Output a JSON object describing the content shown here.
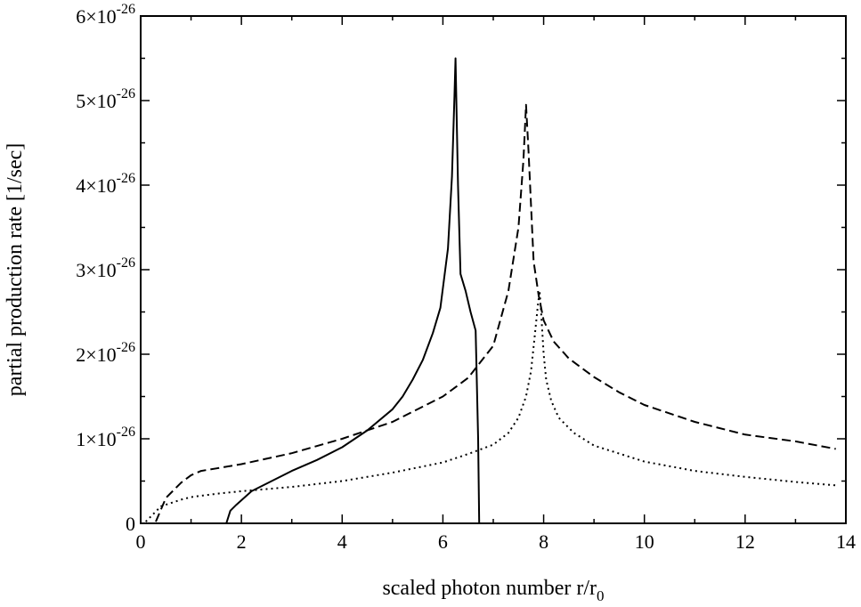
{
  "chart_data": {
    "type": "line",
    "title": "",
    "xlabel": "scaled photon number r/r",
    "xlabel_sub": "0",
    "ylabel": "partial production rate [1/sec]",
    "xlim": [
      0,
      14
    ],
    "ylim": [
      0,
      6e-26
    ],
    "grid": false,
    "legend": "none",
    "x_ticks": [
      0,
      2,
      4,
      6,
      8,
      10,
      12,
      14
    ],
    "x_tick_labels": [
      "0",
      "2",
      "4",
      "6",
      "8",
      "10",
      "12",
      "14"
    ],
    "y_ticks": [
      0,
      1e-26,
      2e-26,
      3e-26,
      4e-26,
      5e-26,
      6e-26
    ],
    "y_tick_labels": [
      {
        "mantissa": "0",
        "exponent": ""
      },
      {
        "mantissa": "1×10",
        "exponent": "-26"
      },
      {
        "mantissa": "2×10",
        "exponent": "-26"
      },
      {
        "mantissa": "3×10",
        "exponent": "-26"
      },
      {
        "mantissa": "4×10",
        "exponent": "-26"
      },
      {
        "mantissa": "5×10",
        "exponent": "-26"
      },
      {
        "mantissa": "6×10",
        "exponent": "-26"
      }
    ],
    "series": [
      {
        "style": "solid",
        "color": "#000000",
        "x": [
          1.7,
          1.78,
          1.9,
          2.2,
          2.5,
          3.0,
          3.5,
          4.0,
          4.5,
          5.0,
          5.2,
          5.4,
          5.6,
          5.8,
          5.95,
          6.1,
          6.18,
          6.23,
          6.25,
          6.3,
          6.35,
          6.45,
          6.55,
          6.65,
          6.7,
          6.72
        ],
        "y": [
          0,
          1.5e-27,
          2.2e-27,
          3.8e-27,
          4.7e-27,
          6.2e-27,
          7.5e-27,
          9e-27,
          1.1e-26,
          1.35e-26,
          1.5e-26,
          1.7e-26,
          1.93e-26,
          2.25e-26,
          2.55e-26,
          3.25e-26,
          4.1e-26,
          5.05e-26,
          5.5e-26,
          4e-26,
          2.95e-26,
          2.75e-26,
          2.5e-26,
          2.28e-26,
          1e-26,
          0
        ]
      },
      {
        "style": "dashed",
        "color": "#000000",
        "x": [
          0.3,
          0.5,
          0.8,
          1.0,
          1.2,
          1.5,
          2.0,
          3.0,
          4.0,
          5.0,
          6.0,
          6.5,
          7.0,
          7.3,
          7.5,
          7.6,
          7.65,
          7.7,
          7.8,
          7.9,
          8.0,
          8.2,
          8.5,
          9.0,
          9.5,
          10.0,
          11.0,
          12.0,
          13.0,
          13.8
        ],
        "y": [
          2e-28,
          3e-27,
          4.8e-27,
          5.7e-27,
          6.2e-27,
          6.5e-27,
          7e-27,
          8.3e-27,
          1e-26,
          1.2e-26,
          1.5e-26,
          1.72e-26,
          2.1e-26,
          2.75e-26,
          3.5e-26,
          4.3e-26,
          4.95e-26,
          4.4e-26,
          3.1e-26,
          2.7e-26,
          2.4e-26,
          2.15e-26,
          1.95e-26,
          1.73e-26,
          1.55e-26,
          1.4e-26,
          1.2e-26,
          1.05e-26,
          9.7e-27,
          8.8e-27
        ]
      },
      {
        "style": "dotted",
        "color": "#000000",
        "x": [
          0.1,
          0.4,
          0.8,
          1.0,
          1.5,
          2.0,
          3.0,
          4.0,
          5.0,
          6.0,
          6.5,
          7.0,
          7.3,
          7.5,
          7.65,
          7.75,
          7.82,
          7.88,
          7.92,
          7.95,
          8.0,
          8.05,
          8.15,
          8.3,
          8.6,
          9.0,
          10.0,
          11.0,
          12.0,
          13.0,
          13.8
        ],
        "y": [
          2e-28,
          2e-27,
          2.8e-27,
          3.1e-27,
          3.5e-27,
          3.8e-27,
          4.3e-27,
          5e-27,
          6e-27,
          7.2e-27,
          8.2e-27,
          9.3e-27,
          1.07e-26,
          1.25e-26,
          1.5e-26,
          1.8e-26,
          2.2e-26,
          2.55e-26,
          2.75e-26,
          2.5e-26,
          2e-26,
          1.7e-26,
          1.45e-26,
          1.25e-26,
          1.07e-26,
          9.2e-27,
          7.3e-27,
          6.2e-27,
          5.5e-27,
          4.9e-27,
          4.5e-27
        ]
      }
    ]
  }
}
